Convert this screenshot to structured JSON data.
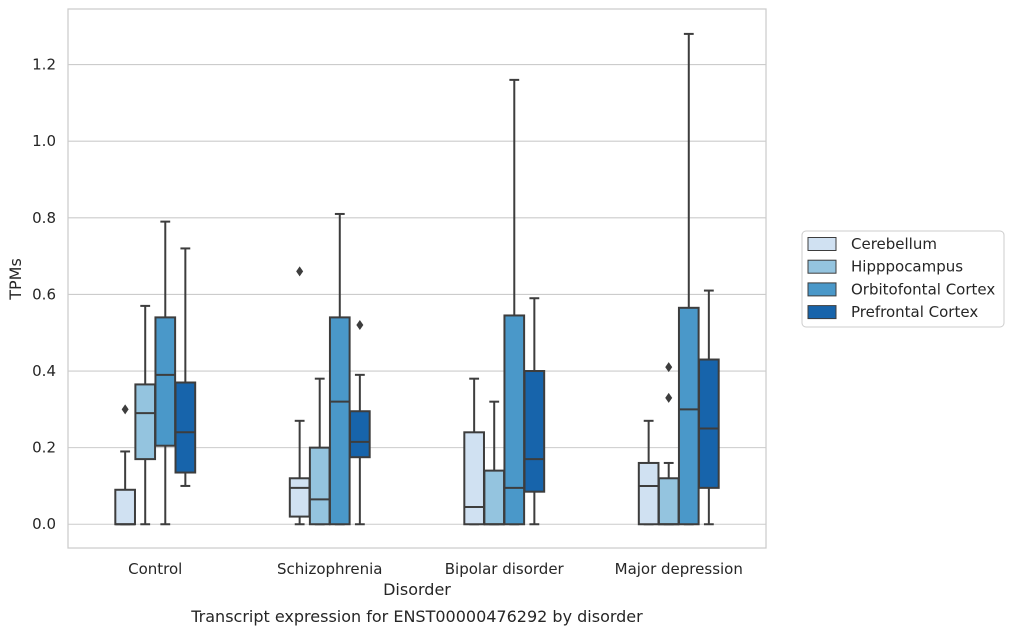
{
  "chart_data": {
    "type": "box",
    "categories": [
      "Control",
      "Schizophrenia",
      "Bipolar disorder",
      "Major depression"
    ],
    "xlabel": "Disorder",
    "ylabel": "TPMs",
    "caption": "Transcript expression for ENST00000476292 by disorder",
    "ylim": [
      -0.062,
      1.345
    ],
    "yticks": [
      "0.0",
      "0.2",
      "0.4",
      "0.6",
      "0.8",
      "1.0",
      "1.2"
    ],
    "ytick_values": [
      0.0,
      0.2,
      0.4,
      0.6,
      0.8,
      1.0,
      1.2
    ],
    "grid": "horizontal",
    "legend_placement": "right",
    "series": [
      {
        "name": "Cerebellum",
        "color": "#d0e1f2",
        "boxes": [
          {
            "whislo": 0.0,
            "q1": 0.0,
            "med": 0.0,
            "q3": 0.09,
            "whishi": 0.19,
            "fliers": [
              0.3
            ]
          },
          {
            "whislo": 0.0,
            "q1": 0.02,
            "med": 0.095,
            "q3": 0.12,
            "whishi": 0.27,
            "fliers": [
              0.66
            ]
          },
          {
            "whislo": 0.0,
            "q1": 0.0,
            "med": 0.045,
            "q3": 0.24,
            "whishi": 0.38,
            "fliers": []
          },
          {
            "whislo": 0.0,
            "q1": 0.0,
            "med": 0.1,
            "q3": 0.16,
            "whishi": 0.27,
            "fliers": []
          }
        ]
      },
      {
        "name": "Hipppocampus",
        "color": "#94c4df",
        "boxes": [
          {
            "whislo": 0.0,
            "q1": 0.17,
            "med": 0.29,
            "q3": 0.365,
            "whishi": 0.57,
            "fliers": []
          },
          {
            "whislo": 0.0,
            "q1": 0.0,
            "med": 0.065,
            "q3": 0.2,
            "whishi": 0.38,
            "fliers": []
          },
          {
            "whislo": 0.0,
            "q1": 0.0,
            "med": 0.0,
            "q3": 0.14,
            "whishi": 0.32,
            "fliers": []
          },
          {
            "whislo": 0.0,
            "q1": 0.0,
            "med": 0.0,
            "q3": 0.12,
            "whishi": 0.16,
            "fliers": [
              0.33,
              0.41
            ]
          }
        ]
      },
      {
        "name": "Orbitofontal Cortex",
        "color": "#4a98c9",
        "boxes": [
          {
            "whislo": 0.0,
            "q1": 0.205,
            "med": 0.39,
            "q3": 0.54,
            "whishi": 0.79,
            "fliers": []
          },
          {
            "whislo": 0.0,
            "q1": 0.0,
            "med": 0.32,
            "q3": 0.54,
            "whishi": 0.81,
            "fliers": []
          },
          {
            "whislo": 0.0,
            "q1": 0.0,
            "med": 0.095,
            "q3": 0.545,
            "whishi": 1.16,
            "fliers": []
          },
          {
            "whislo": 0.0,
            "q1": 0.0,
            "med": 0.3,
            "q3": 0.565,
            "whishi": 1.28,
            "fliers": []
          }
        ]
      },
      {
        "name": "Prefrontal Cortex",
        "color": "#1764ab",
        "boxes": [
          {
            "whislo": 0.1,
            "q1": 0.135,
            "med": 0.24,
            "q3": 0.37,
            "whishi": 0.72,
            "fliers": []
          },
          {
            "whislo": 0.0,
            "q1": 0.175,
            "med": 0.215,
            "q3": 0.295,
            "whishi": 0.39,
            "fliers": [
              0.52
            ]
          },
          {
            "whislo": 0.0,
            "q1": 0.085,
            "med": 0.17,
            "q3": 0.4,
            "whishi": 0.59,
            "fliers": []
          },
          {
            "whislo": 0.0,
            "q1": 0.095,
            "med": 0.25,
            "q3": 0.43,
            "whishi": 0.61,
            "fliers": []
          }
        ]
      }
    ]
  }
}
